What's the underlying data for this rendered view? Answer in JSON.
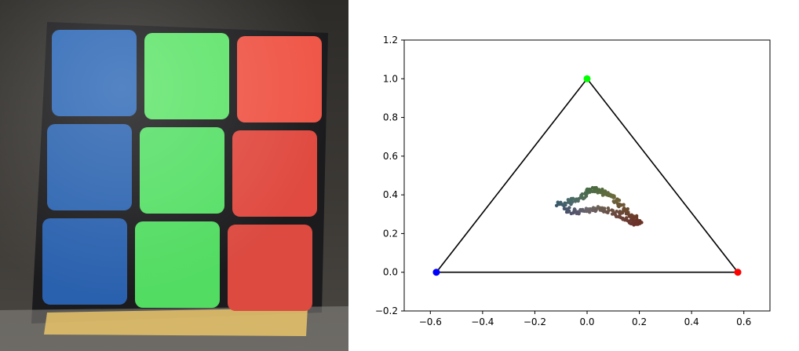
{
  "photo": {
    "subject": "3x3 cube face",
    "sticker_colors": [
      [
        "#2f69b6",
        "#5fe46a",
        "#ef5647"
      ],
      [
        "#2c64b0",
        "#56df66",
        "#e04a40"
      ],
      [
        "#2a61ae",
        "#52dc62",
        "#dc4a40"
      ]
    ]
  },
  "chart_data": {
    "type": "scatter",
    "title": "",
    "xlabel": "",
    "ylabel": "",
    "xlim": [
      -0.7,
      0.7
    ],
    "ylim": [
      -0.2,
      1.2
    ],
    "xticks": [
      -0.6,
      -0.4,
      -0.2,
      0.0,
      0.2,
      0.4,
      0.6
    ],
    "yticks": [
      -0.2,
      0.0,
      0.2,
      0.4,
      0.6,
      0.8,
      1.0,
      1.2
    ],
    "xtick_labels": [
      "−0.6",
      "−0.4",
      "−0.2",
      "0.0",
      "0.2",
      "0.4",
      "0.6"
    ],
    "ytick_labels": [
      "−0.2",
      "0.0",
      "0.2",
      "0.4",
      "0.6",
      "0.8",
      "1.0",
      "1.2"
    ],
    "grid": false,
    "triangle": {
      "vertices": [
        {
          "x": -0.577,
          "y": 0.0,
          "color": "#0000ff"
        },
        {
          "x": 0.0,
          "y": 1.0,
          "color": "#00ff00"
        },
        {
          "x": 0.577,
          "y": 0.0,
          "color": "#ff0000"
        }
      ],
      "edge_color": "#000000"
    },
    "cluster_path": [
      {
        "x": -0.11,
        "y": 0.35
      },
      {
        "x": -0.07,
        "y": 0.36
      },
      {
        "x": -0.03,
        "y": 0.38
      },
      {
        "x": 0.0,
        "y": 0.41
      },
      {
        "x": 0.03,
        "y": 0.43
      },
      {
        "x": 0.06,
        "y": 0.42
      },
      {
        "x": 0.09,
        "y": 0.39
      },
      {
        "x": 0.12,
        "y": 0.36
      },
      {
        "x": 0.15,
        "y": 0.32
      },
      {
        "x": 0.18,
        "y": 0.28
      },
      {
        "x": 0.2,
        "y": 0.25
      },
      {
        "x": 0.17,
        "y": 0.26
      },
      {
        "x": 0.12,
        "y": 0.3
      },
      {
        "x": 0.08,
        "y": 0.32
      },
      {
        "x": 0.04,
        "y": 0.33
      },
      {
        "x": 0.0,
        "y": 0.32
      },
      {
        "x": -0.04,
        "y": 0.31
      },
      {
        "x": -0.08,
        "y": 0.33
      }
    ]
  }
}
